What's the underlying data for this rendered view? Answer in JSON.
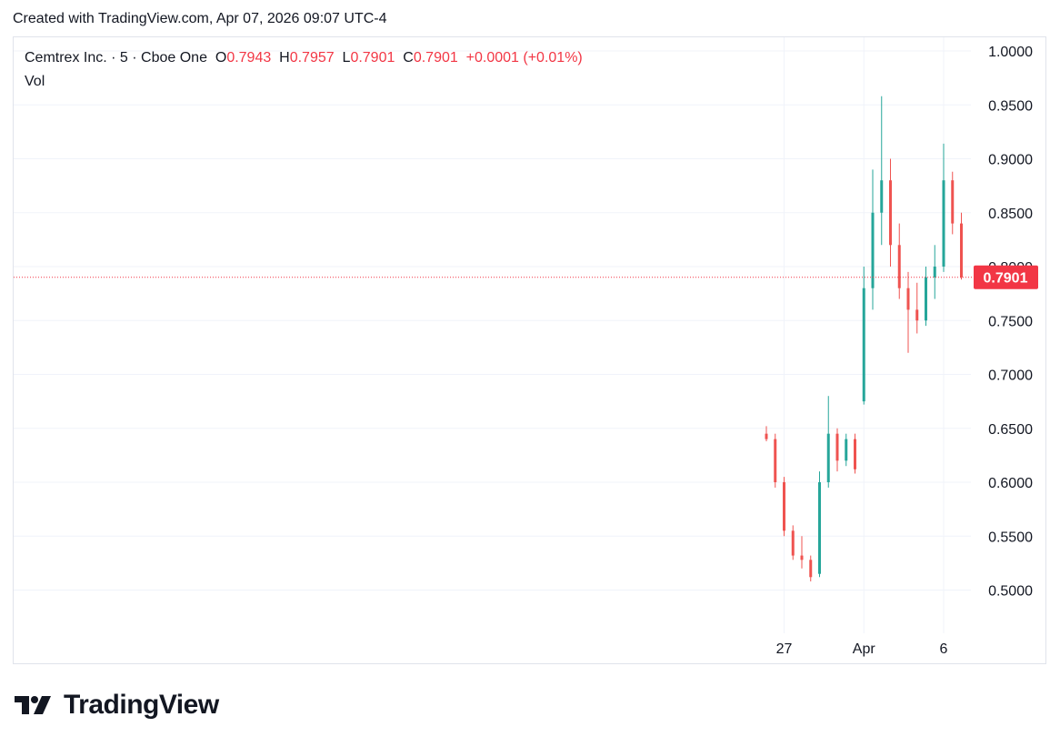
{
  "caption": "Created with TradingView.com, Apr 07, 2026 09:07 UTC-4",
  "legend": {
    "symbol": "Cemtrex Inc. · 5 · Cboe One",
    "open_label": "O",
    "open_value": "0.7943",
    "high_label": "H",
    "high_value": "0.7957",
    "low_label": "L",
    "low_value": "0.7901",
    "close_label": "C",
    "close_value": "0.7901",
    "change": "+0.0001 (+0.01%)",
    "vol_label": "Vol"
  },
  "brand": {
    "name": "TradingView"
  },
  "colors": {
    "up": "#26a69a",
    "down": "#ef5350",
    "last_price": "#f23645",
    "grid": "#f0f3fa"
  },
  "chart_data": {
    "type": "candlestick",
    "interval": "5",
    "exchange": "Cboe One",
    "ylim": [
      0.465,
      1.025
    ],
    "y_ticks": [
      "1.0000",
      "0.9500",
      "0.9000",
      "0.8500",
      "0.8000",
      "0.7500",
      "0.7000",
      "0.6500",
      "0.6000",
      "0.5500",
      "0.5000"
    ],
    "x_ticks": [
      {
        "label": "27",
        "index": 2
      },
      {
        "label": "Apr",
        "index": 11
      },
      {
        "label": "6",
        "index": 20
      }
    ],
    "last_price": "0.7901",
    "candles": [
      {
        "o": 0.645,
        "h": 0.652,
        "l": 0.638,
        "c": 0.64
      },
      {
        "o": 0.64,
        "h": 0.645,
        "l": 0.595,
        "c": 0.6
      },
      {
        "o": 0.6,
        "h": 0.605,
        "l": 0.55,
        "c": 0.555
      },
      {
        "o": 0.555,
        "h": 0.56,
        "l": 0.528,
        "c": 0.532
      },
      {
        "o": 0.532,
        "h": 0.55,
        "l": 0.52,
        "c": 0.528
      },
      {
        "o": 0.528,
        "h": 0.532,
        "l": 0.508,
        "c": 0.512
      },
      {
        "o": 0.515,
        "h": 0.61,
        "l": 0.512,
        "c": 0.6
      },
      {
        "o": 0.6,
        "h": 0.68,
        "l": 0.595,
        "c": 0.645
      },
      {
        "o": 0.645,
        "h": 0.65,
        "l": 0.61,
        "c": 0.62
      },
      {
        "o": 0.62,
        "h": 0.645,
        "l": 0.615,
        "c": 0.64
      },
      {
        "o": 0.64,
        "h": 0.645,
        "l": 0.608,
        "c": 0.612
      },
      {
        "o": 0.675,
        "h": 0.8,
        "l": 0.672,
        "c": 0.78
      },
      {
        "o": 0.78,
        "h": 0.89,
        "l": 0.76,
        "c": 0.85
      },
      {
        "o": 0.85,
        "h": 0.958,
        "l": 0.82,
        "c": 0.88
      },
      {
        "o": 0.88,
        "h": 0.9,
        "l": 0.8,
        "c": 0.82
      },
      {
        "o": 0.82,
        "h": 0.84,
        "l": 0.77,
        "c": 0.78
      },
      {
        "o": 0.78,
        "h": 0.795,
        "l": 0.72,
        "c": 0.76
      },
      {
        "o": 0.76,
        "h": 0.785,
        "l": 0.738,
        "c": 0.75
      },
      {
        "o": 0.75,
        "h": 0.8,
        "l": 0.745,
        "c": 0.79
      },
      {
        "o": 0.79,
        "h": 0.82,
        "l": 0.77,
        "c": 0.8
      },
      {
        "o": 0.8,
        "h": 0.914,
        "l": 0.795,
        "c": 0.88
      },
      {
        "o": 0.88,
        "h": 0.888,
        "l": 0.83,
        "c": 0.84
      },
      {
        "o": 0.84,
        "h": 0.85,
        "l": 0.788,
        "c": 0.79
      }
    ]
  }
}
